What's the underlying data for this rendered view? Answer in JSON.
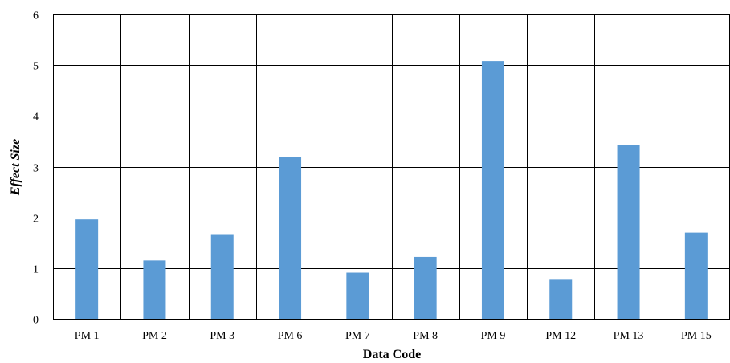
{
  "chart_data": {
    "type": "bar",
    "categories": [
      "PM 1",
      "PM 2",
      "PM 3",
      "PM 6",
      "PM 7",
      "PM 8",
      "PM 9",
      "PM 12",
      "PM 13",
      "PM 15"
    ],
    "values": [
      1.96,
      1.15,
      1.67,
      3.19,
      0.91,
      1.22,
      5.08,
      0.77,
      3.42,
      1.7
    ],
    "title": "",
    "xlabel": "Data Code",
    "ylabel": "Effect Size",
    "ylim": [
      0,
      6
    ],
    "yticks": [
      0,
      1,
      2,
      3,
      4,
      5,
      6
    ],
    "grid": true,
    "legend": "none",
    "bar_color": "#5b9bd5",
    "grid_color": "#000000"
  }
}
